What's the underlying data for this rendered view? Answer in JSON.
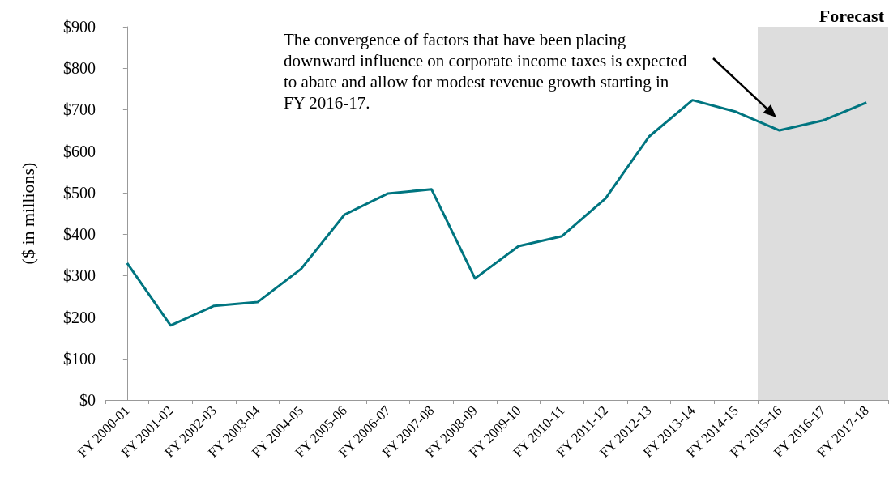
{
  "chart_data": {
    "type": "line",
    "ylabel": "($ in millions)",
    "categories": [
      "FY 2000-01",
      "FY 2001-02",
      "FY 2002-03",
      "FY 2003-04",
      "FY 2004-05",
      "FY 2005-06",
      "FY 2006-07",
      "FY 2007-08",
      "FY 2008-09",
      "FY 2009-10",
      "FY 2010-11",
      "FY 2011-12",
      "FY 2012-13",
      "FY 2013-14",
      "FY 2014-15",
      "FY 2015-16",
      "FY 2016-17",
      "FY 2017-18"
    ],
    "series": [
      {
        "color": "#007580",
        "values": [
          330,
          180,
          227,
          236,
          316,
          447,
          498,
          508,
          293,
          371,
          395,
          486,
          635,
          723,
          695,
          650,
          674,
          717
        ]
      }
    ],
    "ylim": [
      0,
      900
    ],
    "yticks": [
      {
        "value": 0,
        "label": "$0"
      },
      {
        "value": 100,
        "label": "$100"
      },
      {
        "value": 200,
        "label": "$200"
      },
      {
        "value": 300,
        "label": "$300"
      },
      {
        "value": 400,
        "label": "$400"
      },
      {
        "value": 500,
        "label": "$500"
      },
      {
        "value": 600,
        "label": "$600"
      },
      {
        "value": 700,
        "label": "$700"
      },
      {
        "value": 800,
        "label": "$800"
      },
      {
        "value": 900,
        "label": "$900"
      }
    ],
    "bands": [
      {
        "axis": "x",
        "from": "FY 2015-16",
        "to": "FY 2017-18",
        "label": "Forecast",
        "color": "#dddddd"
      }
    ],
    "annotations": [
      "The convergence of factors that have been placing downward influence on corporate income taxes is expected to abate and allow for modest revenue growth starting in FY 2016-17."
    ],
    "grid": false,
    "marker": "none",
    "line_style": "solid"
  }
}
